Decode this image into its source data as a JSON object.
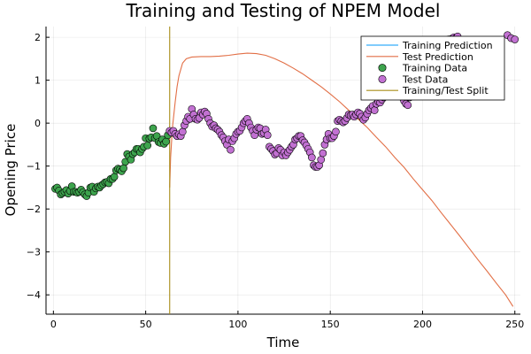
{
  "chart_data": {
    "type": "scatter",
    "title": "Training and Testing of NPEM Model",
    "xlabel": "Time",
    "ylabel": "Opening Price",
    "xlim": [
      -4,
      253
    ],
    "ylim": [
      -4.45,
      2.25
    ],
    "x_ticks": [
      0,
      50,
      100,
      150,
      200,
      250
    ],
    "y_ticks": [
      -4,
      -3,
      -2,
      -1,
      0,
      1,
      2
    ],
    "x_tick_labels": [
      "0",
      "50",
      "100",
      "150",
      "200",
      "250"
    ],
    "y_tick_labels": [
      "−4",
      "−3",
      "−2",
      "−1",
      "0",
      "1",
      "2"
    ],
    "grid": true,
    "legend_position": "top-right",
    "split_x": 63,
    "series": [
      {
        "name": "Training Prediction",
        "kind": "line",
        "color": "#009AFA",
        "points": []
      },
      {
        "name": "Test Prediction",
        "kind": "line",
        "color": "#E26F46",
        "points": [
          [
            63,
            -1.5
          ],
          [
            63.5,
            -0.8
          ],
          [
            64.5,
            -0.1
          ],
          [
            66,
            0.5
          ],
          [
            67,
            0.85
          ],
          [
            68,
            1.1
          ],
          [
            70,
            1.4
          ],
          [
            72,
            1.5
          ],
          [
            75,
            1.54
          ],
          [
            80,
            1.55
          ],
          [
            85,
            1.55
          ],
          [
            90,
            1.56
          ],
          [
            95,
            1.58
          ],
          [
            100,
            1.61
          ],
          [
            105,
            1.63
          ],
          [
            110,
            1.62
          ],
          [
            115,
            1.58
          ],
          [
            120,
            1.5
          ],
          [
            125,
            1.4
          ],
          [
            130,
            1.28
          ],
          [
            135,
            1.15
          ],
          [
            140,
            1.0
          ],
          [
            145,
            0.85
          ],
          [
            150,
            0.68
          ],
          [
            155,
            0.5
          ],
          [
            160,
            0.3
          ],
          [
            165,
            0.1
          ],
          [
            170,
            -0.1
          ],
          [
            175,
            -0.33
          ],
          [
            180,
            -0.55
          ],
          [
            185,
            -0.8
          ],
          [
            190,
            -1.03
          ],
          [
            195,
            -1.3
          ],
          [
            200,
            -1.55
          ],
          [
            205,
            -1.8
          ],
          [
            210,
            -2.08
          ],
          [
            215,
            -2.35
          ],
          [
            220,
            -2.62
          ],
          [
            225,
            -2.9
          ],
          [
            230,
            -3.18
          ],
          [
            235,
            -3.45
          ],
          [
            240,
            -3.73
          ],
          [
            245,
            -4.0
          ],
          [
            249,
            -4.27
          ]
        ]
      },
      {
        "name": "Training Data",
        "kind": "scatter",
        "color": "#3DA44D",
        "points": [
          [
            1,
            -1.53
          ],
          [
            2,
            -1.5
          ],
          [
            3,
            -1.57
          ],
          [
            4,
            -1.66
          ],
          [
            5,
            -1.63
          ],
          [
            6,
            -1.6
          ],
          [
            7,
            -1.56
          ],
          [
            8,
            -1.64
          ],
          [
            9,
            -1.58
          ],
          [
            10,
            -1.47
          ],
          [
            11,
            -1.6
          ],
          [
            12,
            -1.6
          ],
          [
            13,
            -1.62
          ],
          [
            14,
            -1.6
          ],
          [
            15,
            -1.55
          ],
          [
            16,
            -1.61
          ],
          [
            17,
            -1.66
          ],
          [
            18,
            -1.7
          ],
          [
            19,
            -1.62
          ],
          [
            20,
            -1.5
          ],
          [
            21,
            -1.48
          ],
          [
            22,
            -1.6
          ],
          [
            23,
            -1.52
          ],
          [
            24,
            -1.48
          ],
          [
            25,
            -1.5
          ],
          [
            26,
            -1.45
          ],
          [
            27,
            -1.42
          ],
          [
            28,
            -1.38
          ],
          [
            29,
            -1.37
          ],
          [
            30,
            -1.4
          ],
          [
            31,
            -1.3
          ],
          [
            32,
            -1.3
          ],
          [
            33,
            -1.25
          ],
          [
            34,
            -1.1
          ],
          [
            35,
            -1.06
          ],
          [
            36,
            -1.08
          ],
          [
            37,
            -1.12
          ],
          [
            38,
            -1.05
          ],
          [
            39,
            -0.9
          ],
          [
            40,
            -0.72
          ],
          [
            41,
            -0.78
          ],
          [
            42,
            -0.85
          ],
          [
            43,
            -0.72
          ],
          [
            44,
            -0.68
          ],
          [
            45,
            -0.6
          ],
          [
            46,
            -0.6
          ],
          [
            47,
            -0.68
          ],
          [
            48,
            -0.6
          ],
          [
            49,
            -0.55
          ],
          [
            50,
            -0.35
          ],
          [
            51,
            -0.52
          ],
          [
            52,
            -0.36
          ],
          [
            53,
            -0.33
          ],
          [
            54,
            -0.12
          ],
          [
            55,
            -0.35
          ],
          [
            56,
            -0.3
          ],
          [
            57,
            -0.44
          ],
          [
            58,
            -0.46
          ],
          [
            59,
            -0.38
          ],
          [
            60,
            -0.48
          ],
          [
            61,
            -0.43
          ],
          [
            62,
            -0.28
          ]
        ]
      },
      {
        "name": "Test Data",
        "kind": "scatter",
        "color": "#C271D2",
        "points": [
          [
            63,
            -0.18
          ],
          [
            64,
            -0.22
          ],
          [
            65,
            -0.18
          ],
          [
            66,
            -0.25
          ],
          [
            67,
            -0.3
          ],
          [
            68,
            -0.26
          ],
          [
            69,
            -0.3
          ],
          [
            70,
            -0.2
          ],
          [
            71,
            -0.05
          ],
          [
            72,
            0.05
          ],
          [
            73,
            0.15
          ],
          [
            74,
            0.1
          ],
          [
            75,
            0.33
          ],
          [
            76,
            0.2
          ],
          [
            77,
            0.1
          ],
          [
            78,
            0.08
          ],
          [
            79,
            0.12
          ],
          [
            80,
            0.25
          ],
          [
            81,
            0.2
          ],
          [
            82,
            0.27
          ],
          [
            83,
            0.22
          ],
          [
            84,
            0.1
          ],
          [
            85,
            0.0
          ],
          [
            86,
            -0.08
          ],
          [
            87,
            -0.05
          ],
          [
            88,
            -0.12
          ],
          [
            89,
            -0.15
          ],
          [
            90,
            -0.2
          ],
          [
            91,
            -0.28
          ],
          [
            92,
            -0.33
          ],
          [
            93,
            -0.42
          ],
          [
            94,
            -0.5
          ],
          [
            95,
            -0.38
          ],
          [
            96,
            -0.62
          ],
          [
            97,
            -0.42
          ],
          [
            98,
            -0.35
          ],
          [
            99,
            -0.25
          ],
          [
            100,
            -0.2
          ],
          [
            101,
            -0.18
          ],
          [
            102,
            -0.1
          ],
          [
            103,
            0.0
          ],
          [
            104,
            0.05
          ],
          [
            105,
            0.1
          ],
          [
            106,
            0.0
          ],
          [
            107,
            -0.1
          ],
          [
            108,
            -0.18
          ],
          [
            109,
            -0.28
          ],
          [
            110,
            -0.15
          ],
          [
            111,
            -0.1
          ],
          [
            112,
            -0.12
          ],
          [
            113,
            -0.25
          ],
          [
            114,
            -0.23
          ],
          [
            115,
            -0.15
          ],
          [
            116,
            -0.28
          ],
          [
            117,
            -0.55
          ],
          [
            118,
            -0.6
          ],
          [
            119,
            -0.65
          ],
          [
            120,
            -0.73
          ],
          [
            121,
            -0.7
          ],
          [
            122,
            -0.58
          ],
          [
            123,
            -0.62
          ],
          [
            124,
            -0.75
          ],
          [
            125,
            -0.68
          ],
          [
            126,
            -0.75
          ],
          [
            127,
            -0.68
          ],
          [
            128,
            -0.62
          ],
          [
            129,
            -0.55
          ],
          [
            130,
            -0.5
          ],
          [
            131,
            -0.38
          ],
          [
            132,
            -0.35
          ],
          [
            133,
            -0.3
          ],
          [
            134,
            -0.3
          ],
          [
            135,
            -0.4
          ],
          [
            136,
            -0.45
          ],
          [
            137,
            -0.52
          ],
          [
            138,
            -0.6
          ],
          [
            139,
            -0.68
          ],
          [
            140,
            -0.8
          ],
          [
            141,
            -0.98
          ],
          [
            142,
            -1.02
          ],
          [
            143,
            -1.02
          ],
          [
            144,
            -0.98
          ],
          [
            145,
            -0.85
          ],
          [
            146,
            -0.7
          ],
          [
            147,
            -0.5
          ],
          [
            148,
            -0.38
          ],
          [
            149,
            -0.25
          ],
          [
            150,
            -0.35
          ],
          [
            151,
            -0.35
          ],
          [
            152,
            -0.3
          ],
          [
            153,
            -0.2
          ],
          [
            154,
            0.05
          ],
          [
            155,
            0.08
          ],
          [
            156,
            0.05
          ],
          [
            157,
            0.02
          ],
          [
            158,
            0.05
          ],
          [
            159,
            0.12
          ],
          [
            160,
            0.2
          ],
          [
            161,
            0.18
          ],
          [
            162,
            0.2
          ],
          [
            163,
            0.15
          ],
          [
            164,
            0.2
          ],
          [
            165,
            0.25
          ],
          [
            166,
            0.22
          ],
          [
            167,
            0.15
          ],
          [
            168,
            0.08
          ],
          [
            169,
            0.13
          ],
          [
            170,
            0.22
          ],
          [
            171,
            0.3
          ],
          [
            172,
            0.35
          ],
          [
            173,
            0.4
          ],
          [
            174,
            0.3
          ],
          [
            175,
            0.45
          ],
          [
            176,
            0.5
          ],
          [
            177,
            0.48
          ],
          [
            178,
            0.55
          ],
          [
            179,
            0.6
          ],
          [
            180,
            0.7
          ],
          [
            181,
            0.75
          ],
          [
            182,
            0.8
          ],
          [
            183,
            0.85
          ],
          [
            184,
            0.9
          ],
          [
            185,
            0.85
          ],
          [
            186,
            0.78
          ],
          [
            187,
            0.7
          ],
          [
            188,
            0.65
          ],
          [
            189,
            0.6
          ],
          [
            190,
            0.52
          ],
          [
            191,
            0.45
          ],
          [
            192,
            0.42
          ],
          [
            193,
            0.6
          ],
          [
            194,
            0.75
          ],
          [
            195,
            0.9
          ],
          [
            196,
            1.0
          ],
          [
            197,
            1.1
          ],
          [
            198,
            1.2
          ],
          [
            199,
            1.25
          ],
          [
            200,
            1.32
          ],
          [
            201,
            1.4
          ],
          [
            202,
            1.45
          ],
          [
            203,
            1.5
          ],
          [
            204,
            1.55
          ],
          [
            205,
            1.62
          ],
          [
            206,
            1.7
          ],
          [
            207,
            1.75
          ],
          [
            208,
            1.78
          ],
          [
            209,
            1.82
          ],
          [
            210,
            1.85
          ],
          [
            211,
            1.88
          ],
          [
            212,
            1.9
          ],
          [
            213,
            1.92
          ],
          [
            214,
            1.95
          ],
          [
            215,
            1.93
          ],
          [
            216,
            1.97
          ],
          [
            217,
            2.0
          ],
          [
            218,
            1.98
          ],
          [
            219,
            2.02
          ],
          [
            246,
            2.05
          ],
          [
            248,
            1.98
          ],
          [
            250,
            1.95
          ]
        ]
      },
      {
        "name": "Training/Test Split",
        "kind": "vline",
        "color": "#A98D19",
        "x": 63
      }
    ]
  }
}
